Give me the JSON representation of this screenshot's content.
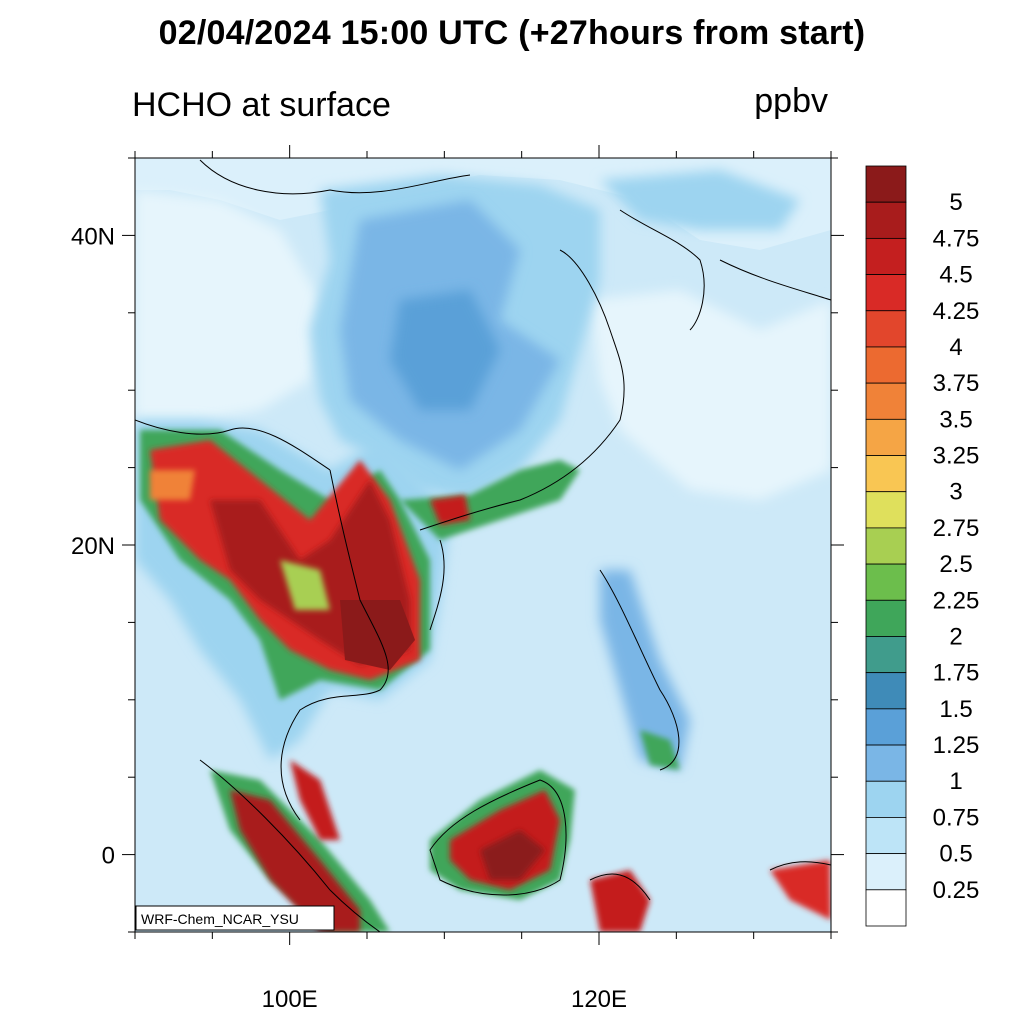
{
  "title": "02/04/2024 15:00 UTC (+27hours from start)",
  "variable": "HCHO at surface",
  "units": "ppbv",
  "credit": "WRF-Chem_NCAR_YSU",
  "axes": {
    "lat_labels": [
      "40N",
      "20N",
      "0"
    ],
    "lat_values": [
      40,
      20,
      0
    ],
    "lon_labels": [
      "100E",
      "120E"
    ],
    "lon_values": [
      100,
      120
    ],
    "lon_range": [
      90,
      135
    ],
    "lat_range": [
      -5,
      45
    ]
  },
  "colorbar": {
    "labels": [
      "5",
      "4.75",
      "4.5",
      "4.25",
      "4",
      "3.75",
      "3.5",
      "3.25",
      "3",
      "2.75",
      "2.5",
      "2.25",
      "2",
      "1.75",
      "1.5",
      "1.25",
      "1",
      "0.75",
      "0.5",
      "0.25"
    ],
    "colors": [
      "#8b1a1a",
      "#a81c1c",
      "#c41f1f",
      "#d92a26",
      "#e2462c",
      "#ec6a30",
      "#f08238",
      "#f5a545",
      "#f9c653",
      "#dfe05c",
      "#a8cf52",
      "#6cbe4c",
      "#3fa65a",
      "#409c8c",
      "#3f8bb8",
      "#5aa0d8",
      "#7ab6e6",
      "#9dd4f0",
      "#bde4f7",
      "#dbf0fb",
      "#ffffff"
    ]
  },
  "colors": {
    "frame": "#000000",
    "low": "#dbf0fb",
    "high": "#8b1a1a"
  }
}
